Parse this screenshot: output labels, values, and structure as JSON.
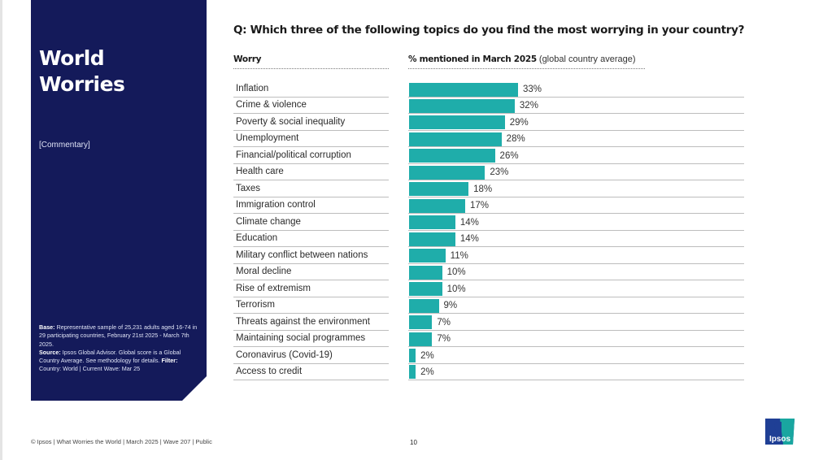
{
  "panel": {
    "title_line1": "World",
    "title_line2": "Worries",
    "commentary": "[Commentary]",
    "base_label": "Base:",
    "base_text": " Representative sample of 25,231 adults aged 16-74 in 29 participating countries, February 21st 2025 - March 7th 2025.",
    "source_label": "Source:",
    "source_text": " Ipsos Global Advisor. Global score is a Global Country Average. See methodology for details. ",
    "filter_label": "Filter:",
    "filter_text": " Country: World | Current Wave: Mar 25"
  },
  "question": "Q: Which three of the following topics do you find the most worrying in your country?",
  "footer": {
    "text": "© Ipsos | What Worries the World | March 2025 | Wave 207 | Public",
    "page": "10",
    "logo_text": "Ipsos"
  },
  "colors": {
    "bar": "#1fadaa",
    "panel": "#141a5a"
  },
  "chart_data": {
    "type": "bar",
    "orientation": "horizontal",
    "title": "Q: Which three of the following topics do you find the most worrying in your country?",
    "xlabel": "% mentioned in March 2025",
    "xlabel_note": "(global country average)",
    "ylabel": "Worry",
    "xlim": [
      0,
      100
    ],
    "grid": false,
    "categories": [
      "Inflation",
      "Crime & violence",
      "Poverty & social inequality",
      "Unemployment",
      "Financial/political corruption",
      "Health care",
      "Taxes",
      "Immigration control",
      "Climate change",
      "Education",
      "Military conflict between nations",
      "Moral decline",
      "Rise of extremism",
      "Terrorism",
      "Threats against the environment",
      "Maintaining social programmes",
      "Coronavirus (Covid-19)",
      "Access to credit"
    ],
    "values": [
      33,
      32,
      29,
      28,
      26,
      23,
      18,
      17,
      14,
      14,
      11,
      10,
      10,
      9,
      7,
      7,
      2,
      2
    ],
    "value_labels": [
      "33%",
      "32%",
      "29%",
      "28%",
      "26%",
      "23%",
      "18%",
      "17%",
      "14%",
      "14%",
      "11%",
      "10%",
      "10%",
      "9%",
      "7%",
      "7%",
      "2%",
      "2%"
    ]
  }
}
